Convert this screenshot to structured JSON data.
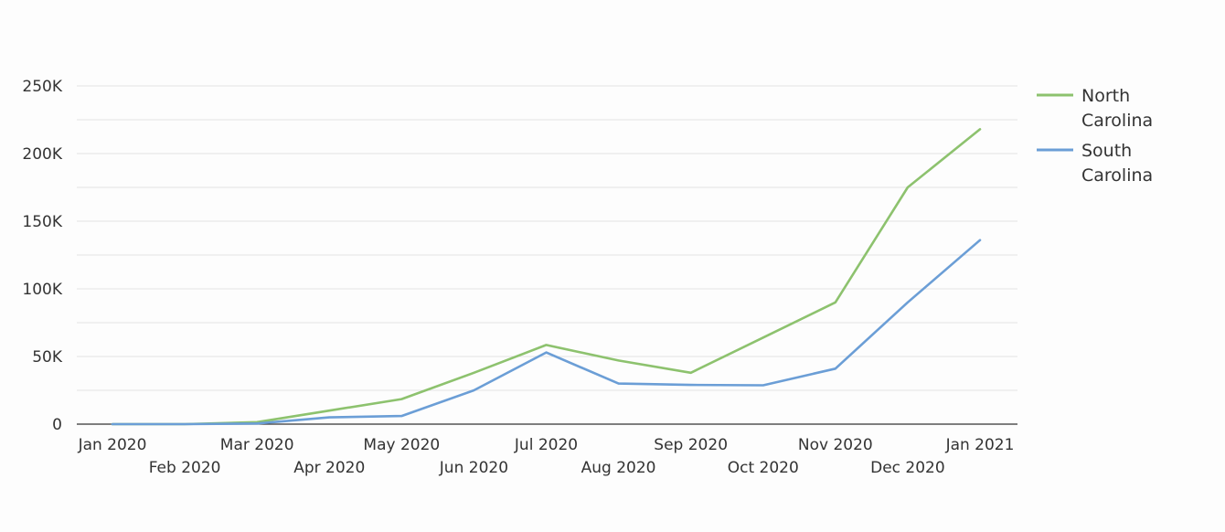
{
  "chart_data": {
    "type": "line",
    "title": "",
    "xlabel": "",
    "ylabel": "",
    "categories": [
      "Jan 2020",
      "Feb 2020",
      "Mar 2020",
      "Apr 2020",
      "May 2020",
      "Jun 2020",
      "Jul 2020",
      "Aug 2020",
      "Sep 2020",
      "Oct 2020",
      "Nov 2020",
      "Dec 2020",
      "Jan 2021"
    ],
    "yticks": [
      0,
      50000,
      100000,
      150000,
      200000,
      250000
    ],
    "ytick_labels": [
      "0",
      "50K",
      "100K",
      "150K",
      "200K",
      "250K"
    ],
    "ylim": [
      0,
      250000
    ],
    "grid": true,
    "legend": "right",
    "series": [
      {
        "name": "North Carolina",
        "name_lines": [
          "North",
          "Carolina"
        ],
        "color": "#8dc26e",
        "values": [
          0,
          0,
          1500,
          10000,
          18500,
          38000,
          58500,
          47000,
          38000,
          64000,
          90000,
          175000,
          218000
        ]
      },
      {
        "name": "South Carolina",
        "name_lines": [
          "South",
          "Carolina"
        ],
        "color": "#6b9ed6",
        "values": [
          0,
          0,
          500,
          5000,
          6000,
          25000,
          53000,
          30000,
          29000,
          28700,
          41000,
          90000,
          136000
        ]
      }
    ]
  }
}
